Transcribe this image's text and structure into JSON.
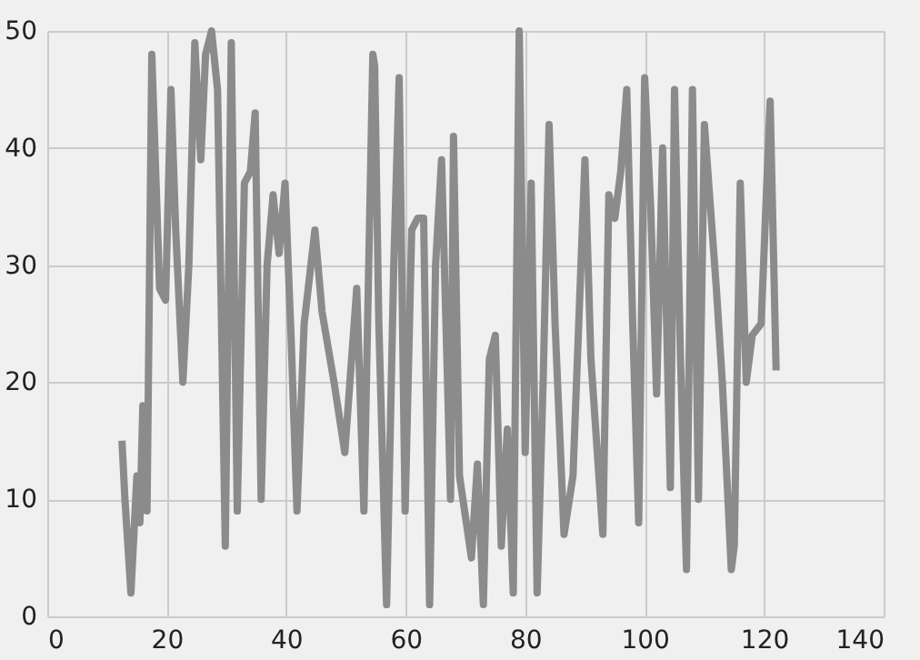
{
  "chart_data": {
    "type": "line",
    "x": [
      12.5,
      13,
      14,
      15,
      15.5,
      16,
      16.7,
      17.5,
      18.8,
      19.8,
      20.7,
      21.5,
      22.7,
      23.7,
      24.7,
      25.7,
      26.5,
      27.5,
      28.5,
      29.8,
      30.8,
      31.8,
      33,
      34,
      34.8,
      35.8,
      36.8,
      37.8,
      38.8,
      39.8,
      40.8,
      41.8,
      43,
      44.8,
      46,
      48,
      49.8,
      51.8,
      53,
      54.5,
      54.8,
      55.5,
      56.8,
      58,
      58.9,
      59.9,
      61,
      62,
      63,
      64,
      65,
      66,
      67,
      67.5,
      68,
      69,
      71,
      72,
      73,
      74,
      75,
      76,
      77,
      78,
      79,
      80,
      81,
      82,
      83,
      84,
      85,
      86.5,
      88,
      90,
      91,
      93,
      94,
      95,
      96,
      97,
      98,
      99,
      100,
      101,
      102,
      103,
      104.3,
      105,
      106,
      107,
      108,
      109,
      110,
      111,
      112,
      113,
      114.5,
      115,
      116,
      117,
      118,
      119.5,
      121,
      122
    ],
    "series": [
      {
        "color": "#8b8b8b",
        "values": [
          15,
          10,
          2,
          12,
          8,
          18,
          9,
          48,
          28,
          27,
          45,
          33,
          20,
          30,
          49,
          39,
          48,
          50,
          45,
          6,
          49,
          9,
          37,
          38,
          43,
          10,
          30,
          36,
          31,
          37,
          24,
          9,
          25,
          33,
          26,
          20,
          14,
          28,
          9,
          48,
          47,
          25,
          1,
          30,
          46,
          9,
          33,
          34,
          34,
          1,
          30,
          39,
          20,
          10,
          41,
          12,
          5,
          13,
          1,
          22,
          24,
          6,
          16,
          2,
          50,
          14,
          37,
          2,
          20,
          42,
          25,
          7,
          12,
          39,
          22,
          7,
          36,
          34,
          38,
          45,
          25,
          8,
          46,
          35,
          19,
          40,
          11,
          45,
          22,
          4,
          45,
          10,
          42,
          35,
          28,
          20,
          4,
          6,
          37,
          20,
          24,
          25,
          44,
          21
        ]
      }
    ],
    "xlim": [
      0,
      140
    ],
    "ylim": [
      0,
      50
    ],
    "xticks": [
      0,
      20,
      40,
      60,
      80,
      100,
      120,
      140
    ],
    "yticks": [
      0,
      10,
      20,
      30,
      40,
      50
    ],
    "grid": true,
    "line_style": "solid"
  }
}
